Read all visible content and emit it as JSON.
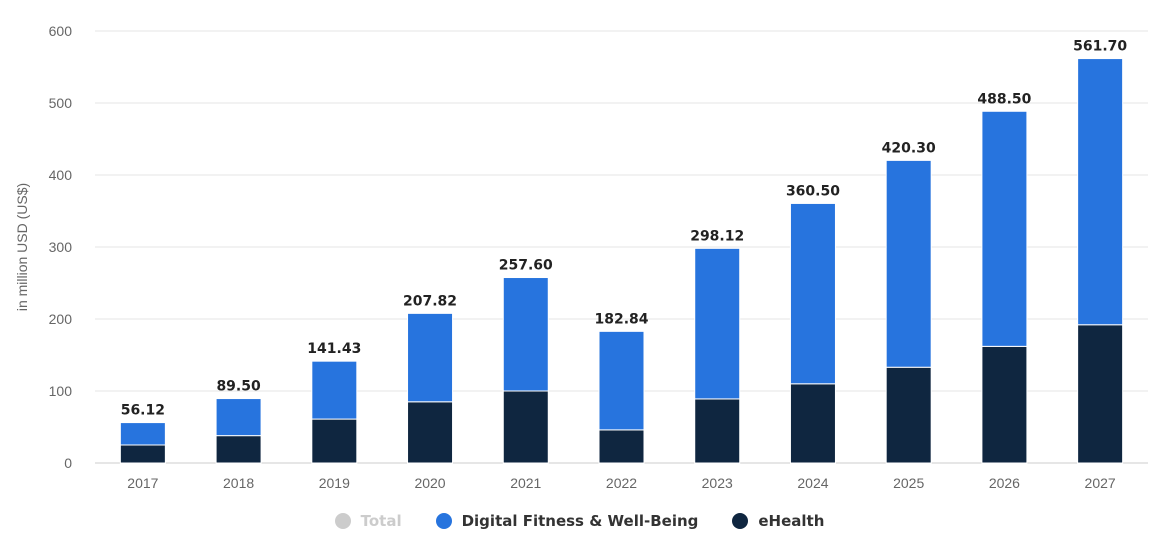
{
  "chart_data": {
    "type": "bar",
    "stacked": true,
    "ylabel": "in million USD (US$)",
    "ylim": [
      0,
      600
    ],
    "yticks": [
      0,
      100,
      200,
      300,
      400,
      500,
      600
    ],
    "grid": true,
    "categories": [
      "2017",
      "2018",
      "2019",
      "2020",
      "2021",
      "2022",
      "2023",
      "2024",
      "2025",
      "2026",
      "2027"
    ],
    "totals": [
      56.12,
      89.5,
      141.43,
      207.82,
      257.6,
      182.84,
      298.12,
      360.5,
      420.3,
      488.5,
      561.7
    ],
    "total_labels": [
      "56.12",
      "89.50",
      "141.43",
      "207.82",
      "257.60",
      "182.84",
      "298.12",
      "360.50",
      "420.30",
      "488.50",
      "561.70"
    ],
    "series": [
      {
        "name": "eHealth",
        "color": "#0f2640",
        "values": [
          25,
          38,
          61,
          85,
          100,
          46,
          89,
          110,
          133,
          162,
          192
        ]
      },
      {
        "name": "Digital Fitness & Well-Being",
        "color": "#2774de",
        "values": [
          31.12,
          51.5,
          80.43,
          122.82,
          157.6,
          136.84,
          209.12,
          250.5,
          287.3,
          326.5,
          369.7
        ]
      }
    ],
    "legend": {
      "placement": "bottom-center",
      "items": [
        {
          "label": "Total",
          "color": "#cccccc",
          "enabled": false
        },
        {
          "label": "Digital Fitness & Well-Being",
          "color": "#2774de",
          "enabled": true
        },
        {
          "label": "eHealth",
          "color": "#0f2640",
          "enabled": true
        }
      ]
    }
  }
}
